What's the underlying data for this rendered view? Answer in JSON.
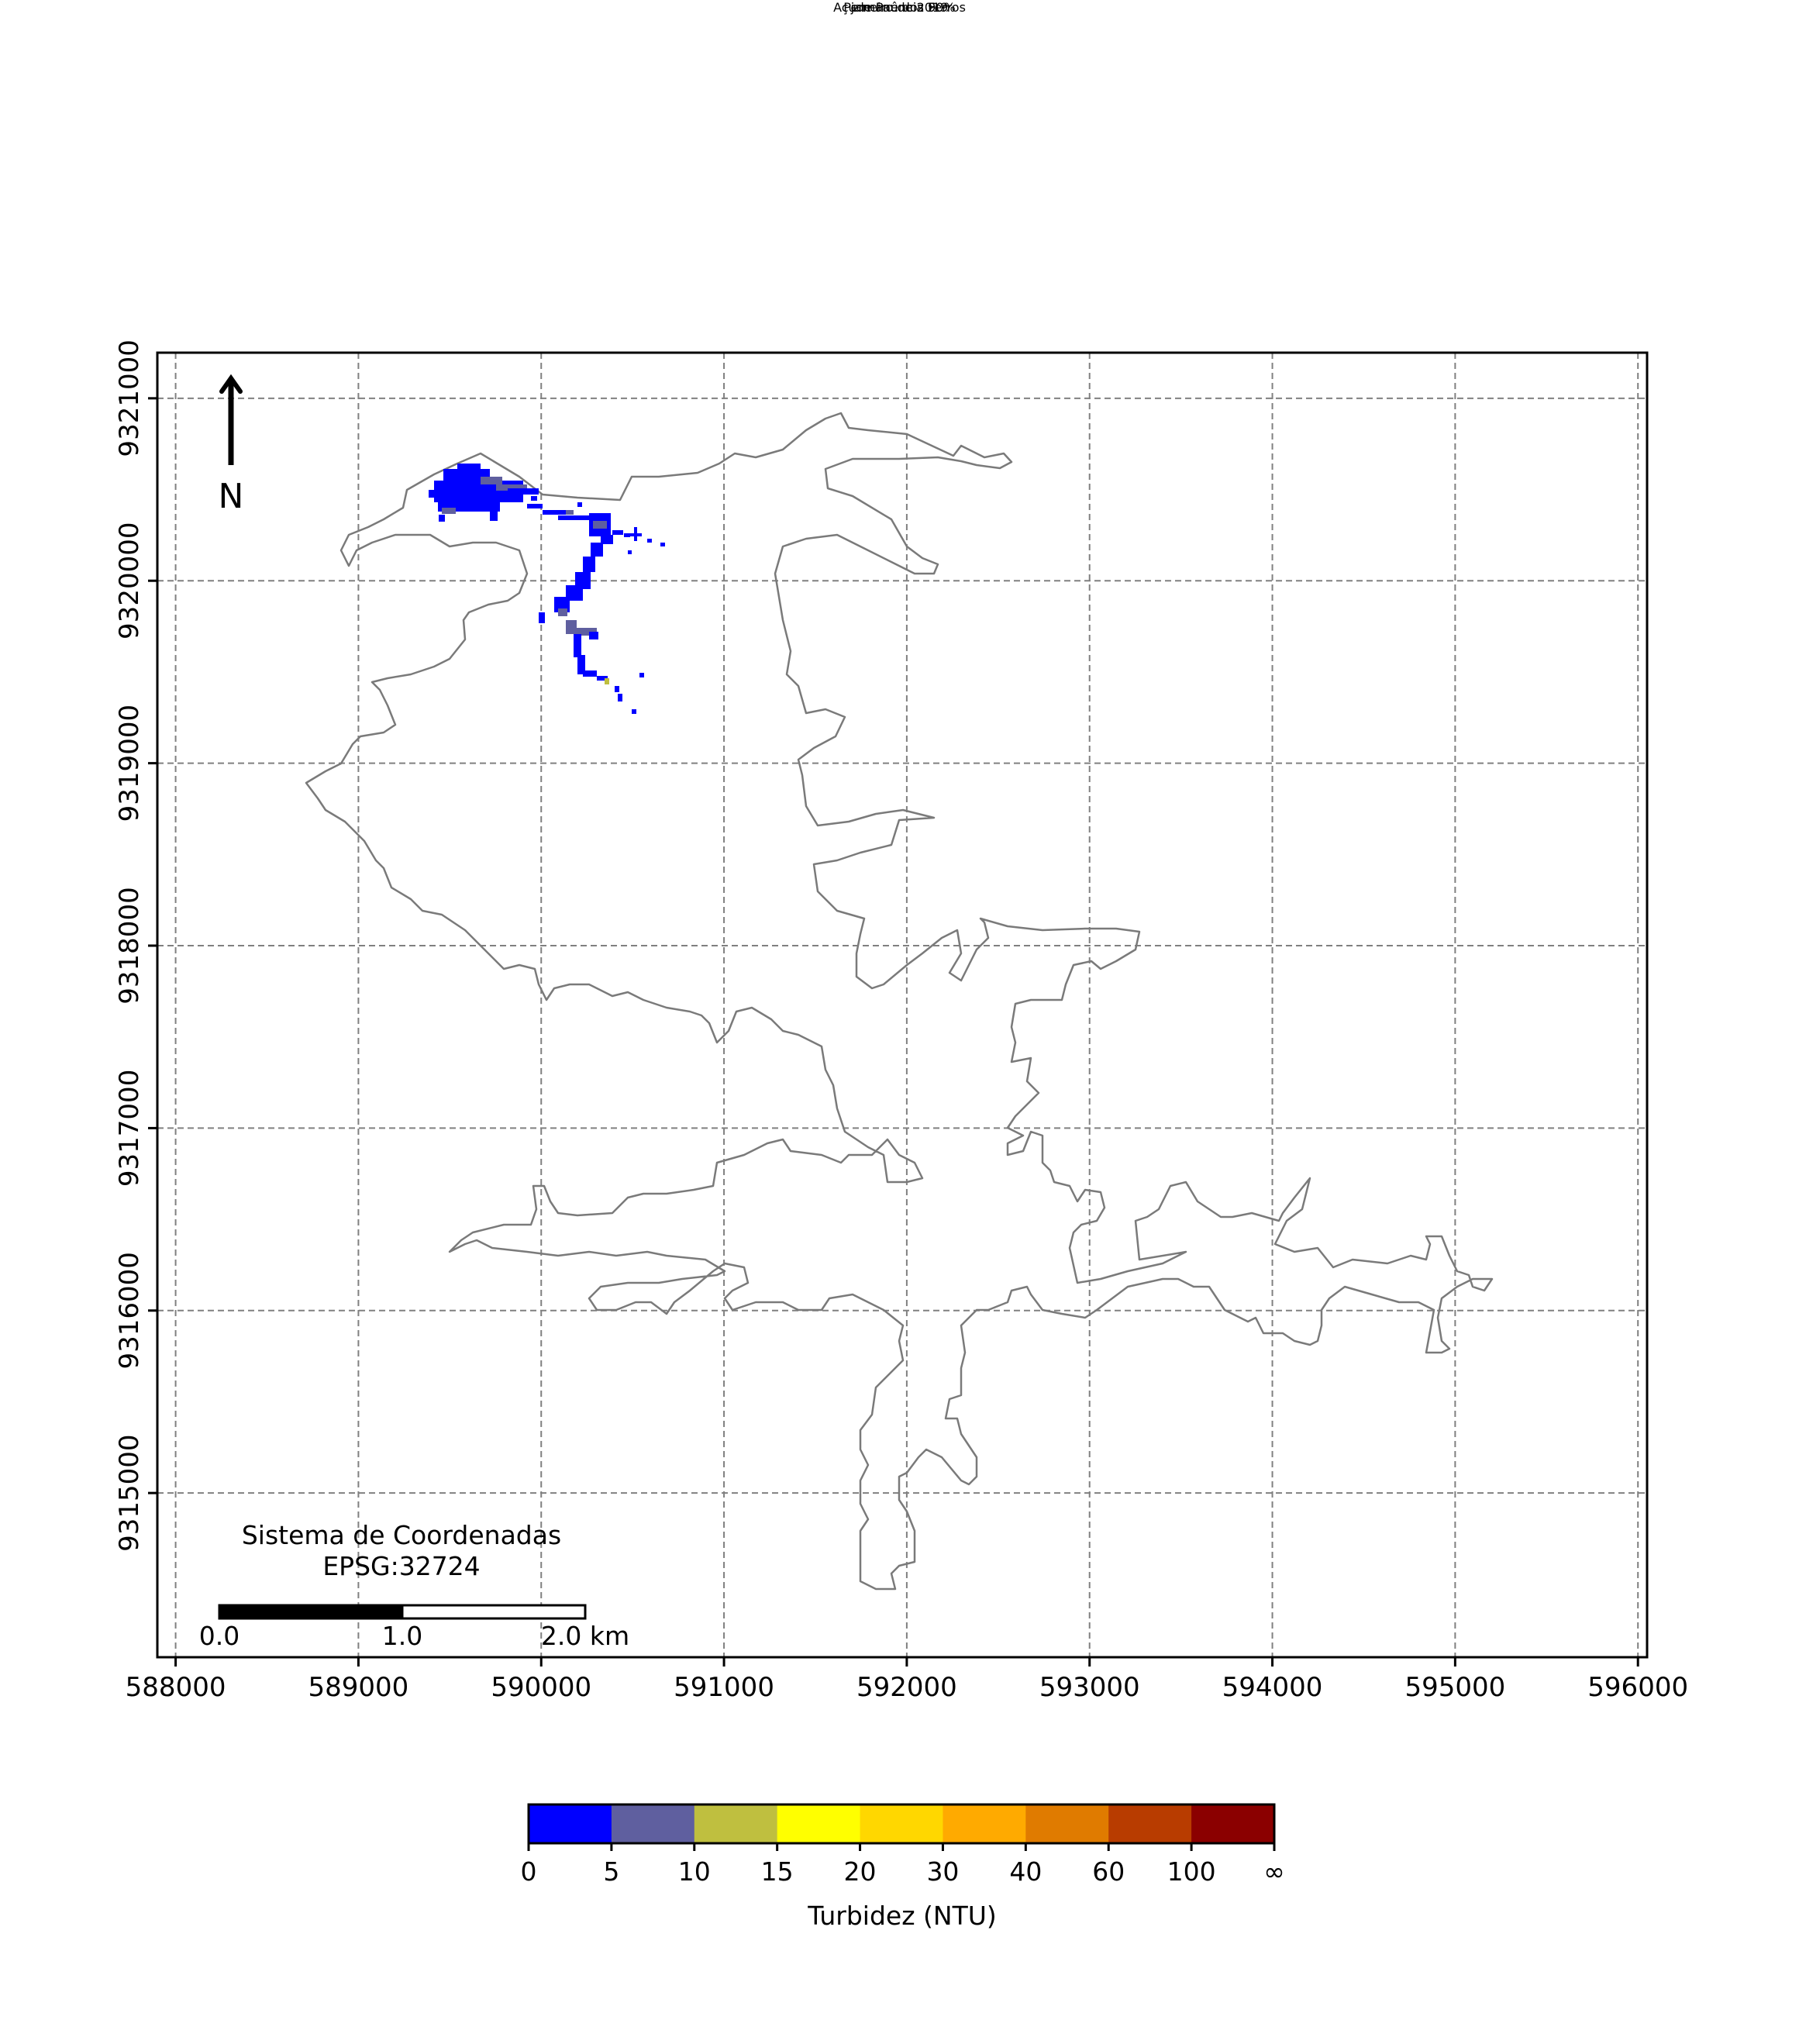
{
  "title": "Açude Pau dos Ferros",
  "subtitle": "janeiro de 2019",
  "permanencia": "Permanência 90%",
  "north_label": "N",
  "crs": {
    "line1": "Sistema de Coordenadas",
    "line2": "EPSG:32724"
  },
  "scalebar": {
    "labels": [
      "0.0",
      "1.0",
      "2.0 km"
    ]
  },
  "axes": {
    "x_ticks": [
      588000,
      589000,
      590000,
      591000,
      592000,
      593000,
      594000,
      595000,
      596000
    ],
    "y_ticks": [
      9315000,
      9316000,
      9317000,
      9318000,
      9319000,
      9320000,
      9321000
    ],
    "xlim": [
      587900,
      596050
    ],
    "ylim": [
      9314100,
      9321250
    ],
    "grid": true
  },
  "colorbar": {
    "label": "Turbidez (NTU)",
    "ticks": [
      "0",
      "5",
      "10",
      "15",
      "20",
      "30",
      "40",
      "60",
      "100",
      "∞"
    ],
    "colors": [
      "#0000ff",
      "#5f5f9f",
      "#bfbf3f",
      "#ffff00",
      "#ffd700",
      "#ffaa00",
      "#e07b00",
      "#b83c00",
      "#8b0000"
    ]
  },
  "chart_data": {
    "type": "heatmap",
    "title": "Açude Pau dos Ferros",
    "subtitle": "janeiro de 2019",
    "classes_ntu": [
      "0–5",
      "5–10",
      "10–15",
      "15–20",
      "20–30",
      "30–40",
      "40–60",
      "60–100",
      "100–∞"
    ],
    "class_colors": [
      "#0000ff",
      "#5f5f9f",
      "#bfbf3f",
      "#ffff00",
      "#ffd700",
      "#ffaa00",
      "#e07b00",
      "#b83c00",
      "#8b0000"
    ],
    "pixels": [
      {
        "x": 589450,
        "y": 9320500,
        "class": "0–5"
      },
      {
        "x": 589550,
        "y": 9320500,
        "class": "0–5"
      },
      {
        "x": 589650,
        "y": 9320520,
        "class": "0–5"
      },
      {
        "x": 589750,
        "y": 9320480,
        "class": "5–10"
      },
      {
        "x": 589850,
        "y": 9320460,
        "class": "0–5"
      },
      {
        "x": 590300,
        "y": 9320300,
        "class": "0–5"
      },
      {
        "x": 590350,
        "y": 9320200,
        "class": "5–10"
      },
      {
        "x": 590150,
        "y": 9319900,
        "class": "0–5"
      },
      {
        "x": 590200,
        "y": 9319700,
        "class": "5–10"
      },
      {
        "x": 590200,
        "y": 9319500,
        "class": "0–5"
      },
      {
        "x": 590400,
        "y": 9319300,
        "class": "0–5"
      }
    ]
  }
}
